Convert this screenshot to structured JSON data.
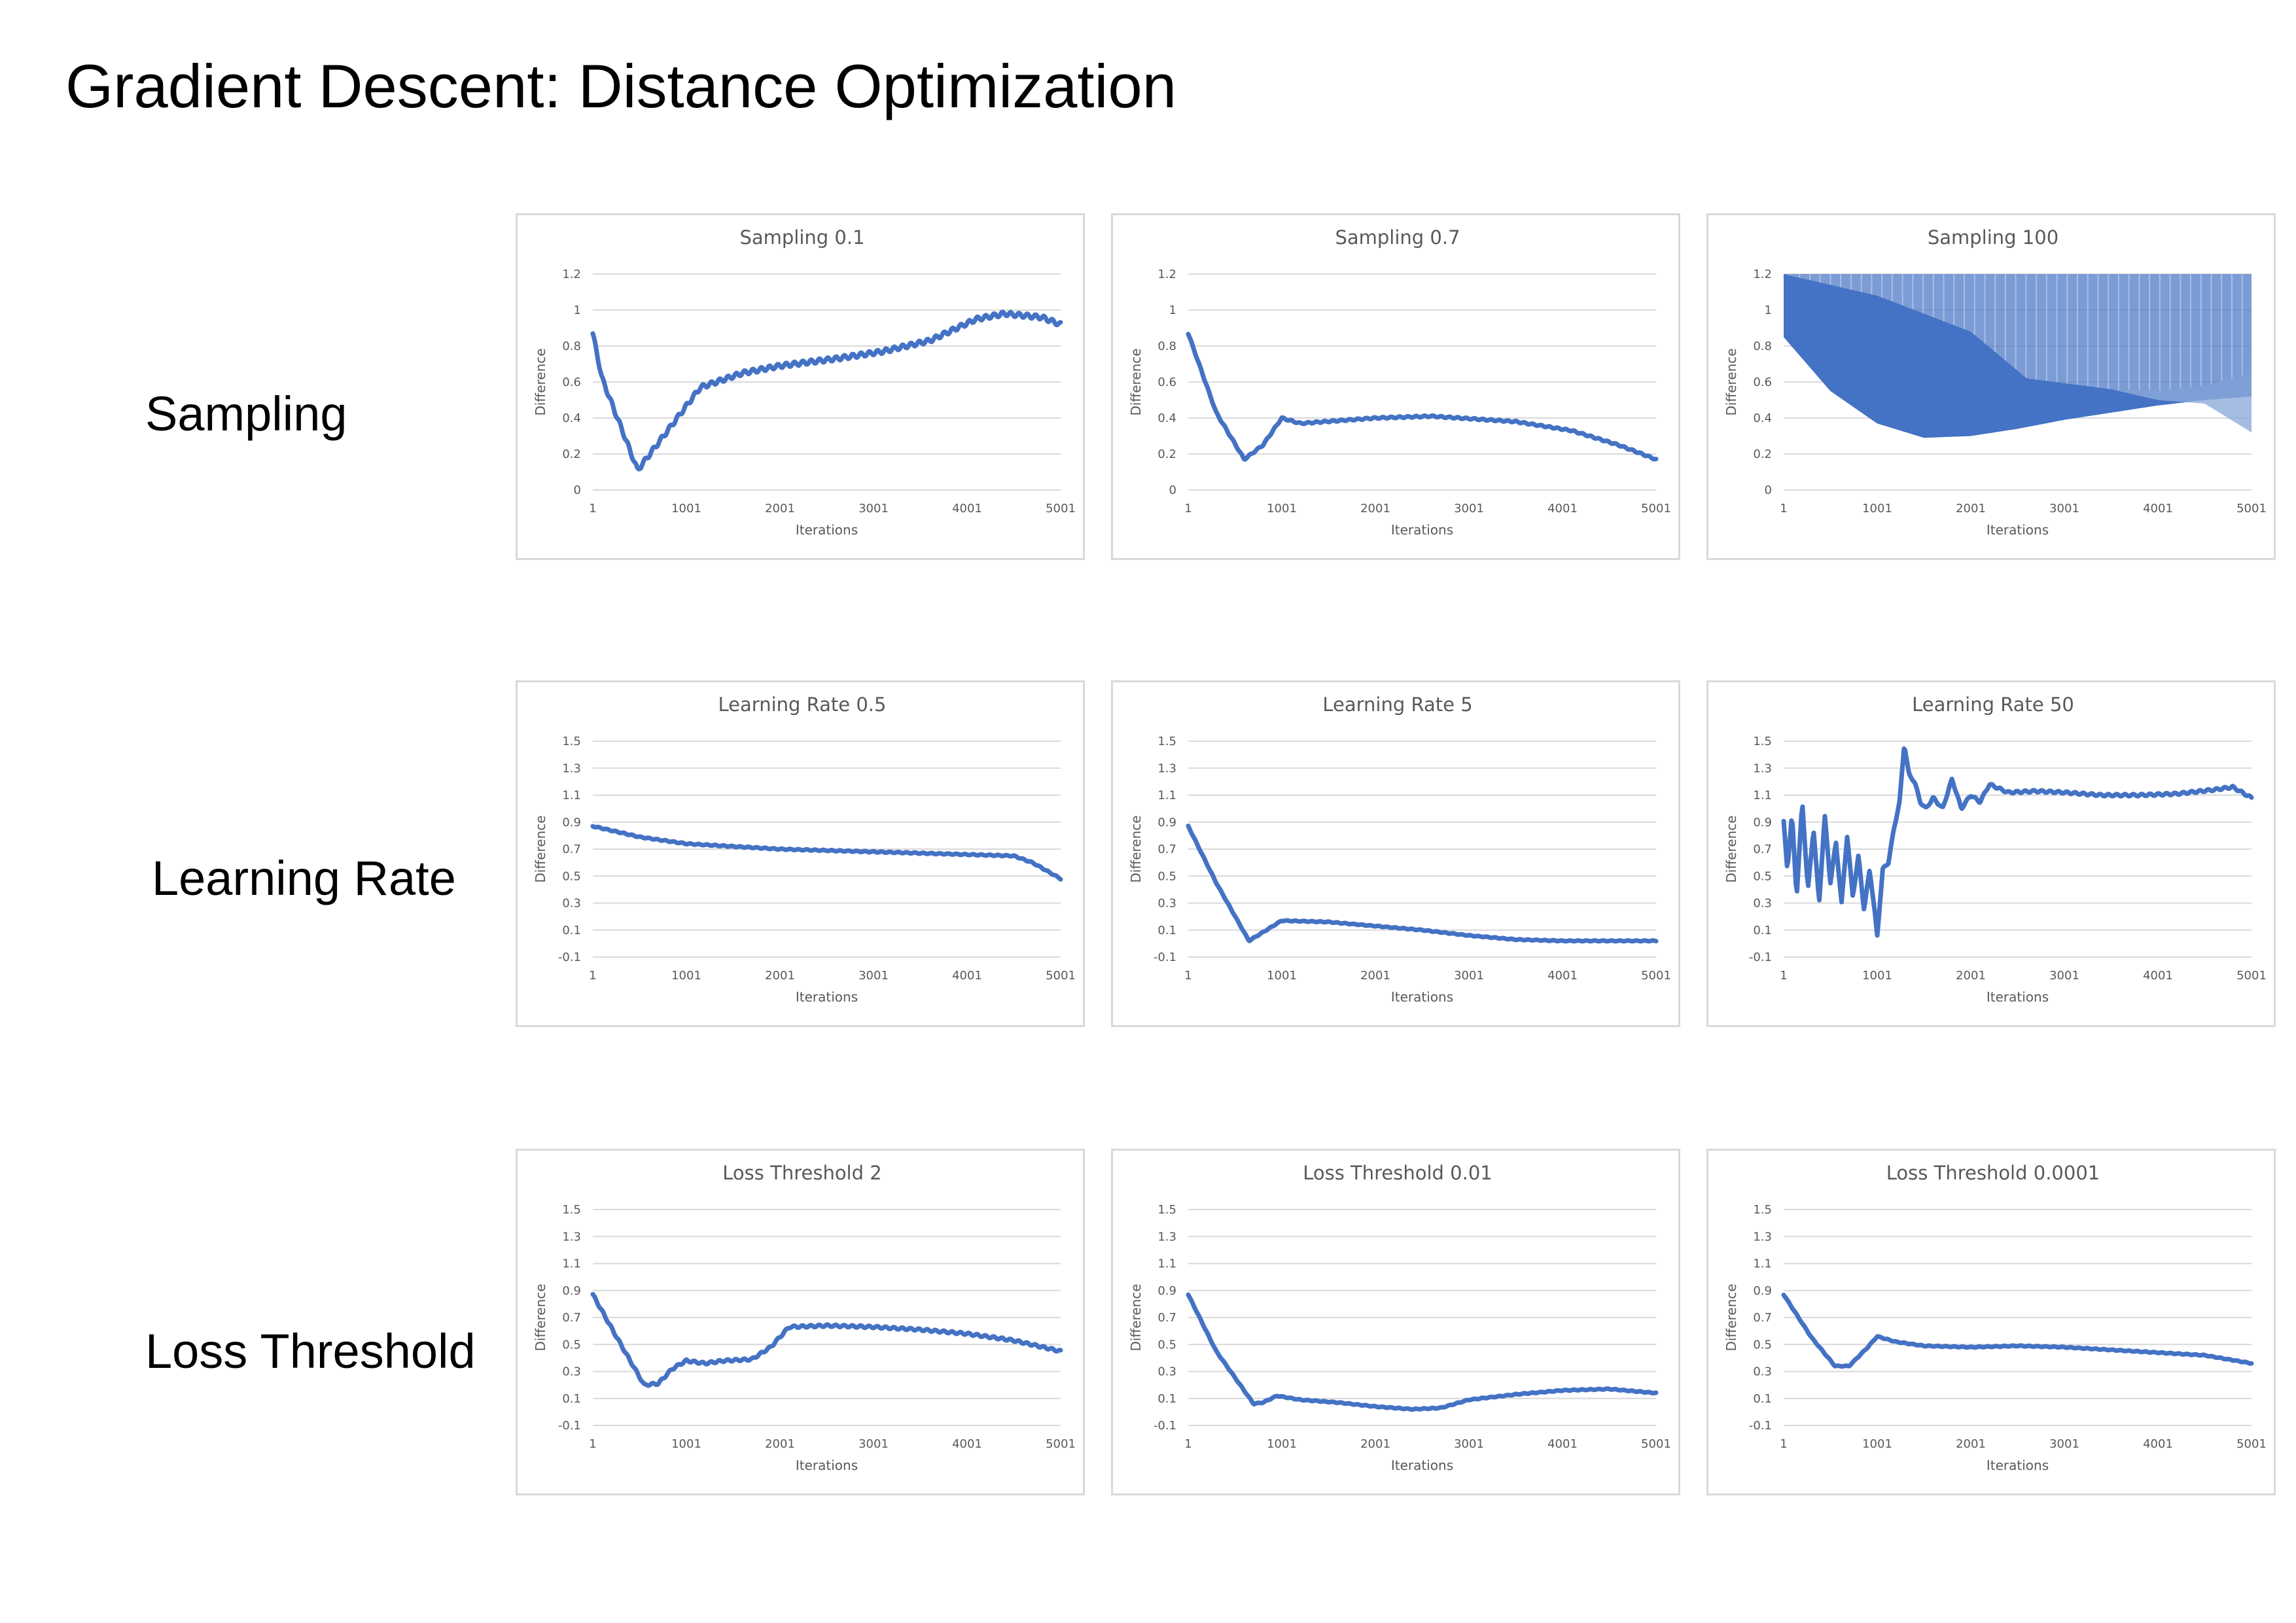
{
  "page": {
    "title": "Gradient Descent: Distance Optimization",
    "row_labels": [
      "Sampling",
      "Learning Rate",
      "Loss Threshold"
    ]
  },
  "colors": {
    "series": "#4472c4",
    "grid": "#d9d9d9",
    "text": "#595959"
  },
  "chart_data": [
    {
      "type": "line",
      "row": 0,
      "col": 0,
      "title": "Sampling 0.1",
      "xlabel": "Iterations",
      "ylabel": "Difference",
      "xlim": [
        1,
        5001
      ],
      "ylim": [
        0,
        1.2
      ],
      "yticks": [
        "0",
        "0.2",
        "0.4",
        "0.6",
        "0.8",
        "1",
        "1.2"
      ],
      "xticks": [
        "1",
        "1001",
        "2001",
        "3001",
        "4001",
        "5001"
      ],
      "grid": true,
      "legend": "none",
      "noise": 0.012,
      "series": [
        {
          "x": [
            1,
            100,
            480,
            1150,
            1600,
            2000,
            2600,
            3100,
            3600,
            4100,
            4400,
            4800,
            5001
          ],
          "y": [
            0.87,
            0.62,
            0.11,
            0.57,
            0.65,
            0.69,
            0.73,
            0.77,
            0.83,
            0.95,
            0.98,
            0.96,
            0.92
          ]
        }
      ]
    },
    {
      "type": "line",
      "row": 0,
      "col": 1,
      "title": "Sampling 0.7",
      "xlabel": "Iterations",
      "ylabel": "Difference",
      "xlim": [
        1,
        5001
      ],
      "ylim": [
        0,
        1.2
      ],
      "yticks": [
        "0",
        "0.2",
        "0.4",
        "0.6",
        "0.8",
        "1",
        "1.2"
      ],
      "xticks": [
        "1",
        "1001",
        "2001",
        "3001",
        "4001",
        "5001"
      ],
      "grid": true,
      "legend": "none",
      "noise": 0.004,
      "series": [
        {
          "x": [
            1,
            300,
            600,
            800,
            1000,
            1200,
            2000,
            2600,
            3500,
            4100,
            4600,
            5001
          ],
          "y": [
            0.87,
            0.43,
            0.17,
            0.25,
            0.4,
            0.37,
            0.4,
            0.41,
            0.38,
            0.33,
            0.25,
            0.17
          ]
        }
      ]
    },
    {
      "type": "area",
      "row": 0,
      "col": 2,
      "title": "Sampling 100",
      "xlabel": "Iterations",
      "ylabel": "Difference",
      "xlim": [
        1,
        5001
      ],
      "ylim": [
        0,
        1.2
      ],
      "yticks": [
        "0",
        "0.2",
        "0.4",
        "0.6",
        "0.8",
        "1",
        "1.2"
      ],
      "xticks": [
        "1",
        "1001",
        "2001",
        "3001",
        "4001",
        "5001"
      ],
      "grid": true,
      "legend": "none",
      "band_upper": 1.2,
      "series": [
        {
          "x": [
            1,
            500,
            1000,
            1500,
            2000,
            2500,
            3000,
            3500,
            4000,
            4500,
            5001
          ],
          "y": [
            0.85,
            0.55,
            0.37,
            0.29,
            0.3,
            0.34,
            0.39,
            0.43,
            0.47,
            0.5,
            0.52
          ]
        },
        {
          "x": [
            1,
            1000,
            2000,
            2600,
            3500,
            4000,
            4500,
            5001
          ],
          "y": [
            1.2,
            1.08,
            0.88,
            0.62,
            0.56,
            0.5,
            0.48,
            0.32
          ]
        },
        {
          "x": [
            1,
            1000,
            2000,
            2600,
            3500,
            4000,
            4500,
            5001
          ],
          "y": [
            1.2,
            1.08,
            0.88,
            0.62,
            0.56,
            0.55,
            0.58,
            0.65
          ]
        }
      ]
    },
    {
      "type": "line",
      "row": 1,
      "col": 0,
      "title": "Learning Rate 0.5",
      "xlabel": "Iterations",
      "ylabel": "Difference",
      "xlim": [
        1,
        5001
      ],
      "ylim": [
        -0.1,
        1.5
      ],
      "yticks": [
        "-0.1",
        "0.1",
        "0.3",
        "0.5",
        "0.7",
        "0.9",
        "1.1",
        "1.3",
        "1.5"
      ],
      "xticks": [
        "1",
        "1001",
        "2001",
        "3001",
        "4001",
        "5001"
      ],
      "grid": true,
      "legend": "none",
      "noise": 0.004,
      "series": [
        {
          "x": [
            1,
            500,
            1000,
            1500,
            2000,
            2500,
            3000,
            3500,
            4000,
            4500,
            4700,
            5001
          ],
          "y": [
            0.87,
            0.79,
            0.74,
            0.72,
            0.7,
            0.69,
            0.68,
            0.67,
            0.66,
            0.65,
            0.6,
            0.48
          ]
        }
      ]
    },
    {
      "type": "line",
      "row": 1,
      "col": 1,
      "title": "Learning Rate 5",
      "xlabel": "Iterations",
      "ylabel": "Difference",
      "xlim": [
        1,
        5001
      ],
      "ylim": [
        -0.1,
        1.5
      ],
      "yticks": [
        "-0.1",
        "0.1",
        "0.3",
        "0.5",
        "0.7",
        "0.9",
        "1.1",
        "1.3",
        "1.5"
      ],
      "xticks": [
        "1",
        "1001",
        "2001",
        "3001",
        "4001",
        "5001"
      ],
      "grid": true,
      "legend": "none",
      "noise": 0.003,
      "series": [
        {
          "x": [
            1,
            300,
            650,
            1000,
            1500,
            2000,
            2500,
            3000,
            3500,
            4000,
            5001
          ],
          "y": [
            0.87,
            0.45,
            0.02,
            0.17,
            0.16,
            0.13,
            0.1,
            0.06,
            0.03,
            0.02,
            0.02
          ]
        }
      ]
    },
    {
      "type": "line",
      "row": 1,
      "col": 2,
      "title": "Learning Rate 50",
      "xlabel": "Iterations",
      "ylabel": "Difference",
      "xlim": [
        1,
        5001
      ],
      "ylim": [
        -0.1,
        1.5
      ],
      "yticks": [
        "-0.1",
        "0.1",
        "0.3",
        "0.5",
        "0.7",
        "0.9",
        "1.1",
        "1.3",
        "1.5"
      ],
      "xticks": [
        "1",
        "1001",
        "2001",
        "3001",
        "4001",
        "5001"
      ],
      "grid": true,
      "legend": "none",
      "noise": 0.008,
      "series": [
        {
          "x": [
            1,
            40,
            90,
            140,
            200,
            260,
            320,
            380,
            440,
            500,
            560,
            620,
            680,
            740,
            800,
            860,
            920,
            980,
            1000,
            1060,
            1120,
            1180,
            1240,
            1290,
            1340,
            1400,
            1460,
            1520,
            1600,
            1700,
            1800,
            1900,
            2000,
            2100,
            2200,
            2400,
            2700,
            3000,
            3400,
            3800,
            4200,
            4600,
            4800,
            5001
          ],
          "y": [
            0.9,
            0.55,
            0.95,
            0.35,
            1.05,
            0.4,
            0.85,
            0.3,
            0.95,
            0.45,
            0.75,
            0.3,
            0.8,
            0.35,
            0.65,
            0.25,
            0.55,
            0.2,
            0.05,
            0.55,
            0.6,
            0.85,
            1.05,
            1.48,
            1.25,
            1.2,
            1.05,
            1.0,
            1.08,
            1.0,
            1.22,
            1.0,
            1.1,
            1.05,
            1.18,
            1.12,
            1.13,
            1.12,
            1.1,
            1.1,
            1.11,
            1.14,
            1.16,
            1.08
          ]
        }
      ]
    },
    {
      "type": "line",
      "row": 2,
      "col": 0,
      "title": "Loss Threshold 2",
      "xlabel": "Iterations",
      "ylabel": "Difference",
      "xlim": [
        1,
        5001
      ],
      "ylim": [
        -0.1,
        1.5
      ],
      "yticks": [
        "-0.1",
        "0.1",
        "0.3",
        "0.5",
        "0.7",
        "0.9",
        "1.1",
        "1.3",
        "1.5"
      ],
      "xticks": [
        "1",
        "1001",
        "2001",
        "3001",
        "4001",
        "5001"
      ],
      "grid": true,
      "legend": "none",
      "noise": 0.008,
      "series": [
        {
          "x": [
            1,
            300,
            550,
            700,
            850,
            1000,
            1200,
            1400,
            1700,
            1900,
            2100,
            2500,
            3000,
            3500,
            4000,
            4500,
            5001
          ],
          "y": [
            0.87,
            0.5,
            0.2,
            0.21,
            0.32,
            0.38,
            0.36,
            0.38,
            0.39,
            0.48,
            0.63,
            0.64,
            0.63,
            0.61,
            0.58,
            0.53,
            0.45
          ]
        }
      ]
    },
    {
      "type": "line",
      "row": 2,
      "col": 1,
      "title": "Loss Threshold 0.01",
      "xlabel": "Iterations",
      "ylabel": "Difference",
      "xlim": [
        1,
        5001
      ],
      "ylim": [
        -0.1,
        1.5
      ],
      "yticks": [
        "-0.1",
        "0.1",
        "0.3",
        "0.5",
        "0.7",
        "0.9",
        "1.1",
        "1.3",
        "1.5"
      ],
      "xticks": [
        "1",
        "1001",
        "2001",
        "3001",
        "4001",
        "5001"
      ],
      "grid": true,
      "legend": "none",
      "noise": 0.003,
      "series": [
        {
          "x": [
            1,
            300,
            700,
            800,
            950,
            1200,
            1600,
            2000,
            2400,
            2700,
            3000,
            3500,
            4000,
            4500,
            5001
          ],
          "y": [
            0.87,
            0.45,
            0.06,
            0.07,
            0.12,
            0.09,
            0.07,
            0.04,
            0.02,
            0.03,
            0.09,
            0.13,
            0.16,
            0.17,
            0.14
          ]
        }
      ]
    },
    {
      "type": "line",
      "row": 2,
      "col": 2,
      "title": "Loss Threshold 0.0001",
      "xlabel": "Iterations",
      "ylabel": "Difference",
      "xlim": [
        1,
        5001
      ],
      "ylim": [
        -0.1,
        1.5
      ],
      "yticks": [
        "-0.1",
        "0.1",
        "0.3",
        "0.5",
        "0.7",
        "0.9",
        "1.1",
        "1.3",
        "1.5"
      ],
      "xticks": [
        "1",
        "1001",
        "2001",
        "3001",
        "4001",
        "5001"
      ],
      "grid": true,
      "legend": "none",
      "noise": 0.003,
      "series": [
        {
          "x": [
            1,
            300,
            550,
            700,
            900,
            1000,
            1200,
            1500,
            2000,
            2500,
            3000,
            3500,
            4000,
            4500,
            5001
          ],
          "y": [
            0.87,
            0.55,
            0.34,
            0.34,
            0.48,
            0.56,
            0.52,
            0.49,
            0.48,
            0.49,
            0.48,
            0.46,
            0.44,
            0.42,
            0.36
          ]
        }
      ]
    }
  ]
}
